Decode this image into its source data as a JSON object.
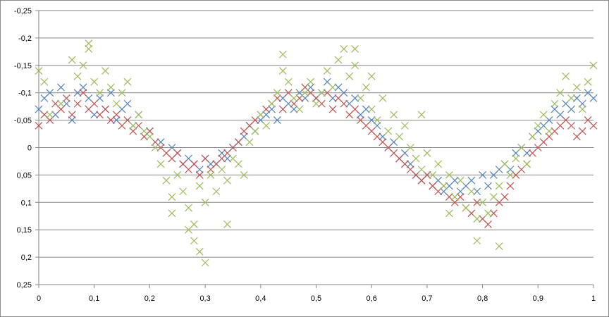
{
  "chart_data": {
    "type": "scatter",
    "title": "",
    "xlabel": "",
    "ylabel": "",
    "xlim": [
      0,
      1
    ],
    "ylim": [
      -0.25,
      0.25
    ],
    "y_reversed": true,
    "x_ticks": [
      "0",
      "0,1",
      "0,2",
      "0,3",
      "0,4",
      "0,5",
      "0,6",
      "0,7",
      "0,8",
      "0,9",
      "1"
    ],
    "y_ticks": [
      "-0,25",
      "-0,2",
      "-0,15",
      "-0,1",
      "-0,05",
      "0",
      "0,05",
      "0,1",
      "0,15",
      "0,2",
      "0,25"
    ],
    "grid": "horizontal",
    "legend": "none",
    "marker": "x",
    "series": [
      {
        "color": "#4f81bd",
        "points": [
          [
            0.0,
            -0.07
          ],
          [
            0.01,
            -0.09
          ],
          [
            0.02,
            -0.1
          ],
          [
            0.03,
            -0.06
          ],
          [
            0.04,
            -0.11
          ],
          [
            0.05,
            -0.08
          ],
          [
            0.06,
            -0.05
          ],
          [
            0.07,
            -0.1
          ],
          [
            0.08,
            -0.11
          ],
          [
            0.09,
            -0.09
          ],
          [
            0.1,
            -0.06
          ],
          [
            0.11,
            -0.09
          ],
          [
            0.12,
            -0.07
          ],
          [
            0.13,
            -0.1
          ],
          [
            0.14,
            -0.05
          ],
          [
            0.15,
            -0.07
          ],
          [
            0.16,
            -0.08
          ],
          [
            0.17,
            -0.04
          ],
          [
            0.18,
            -0.06
          ],
          [
            0.2,
            -0.03
          ],
          [
            0.22,
            -0.01
          ],
          [
            0.24,
            0.0
          ],
          [
            0.25,
            0.01
          ],
          [
            0.26,
            0.03
          ],
          [
            0.27,
            0.02
          ],
          [
            0.28,
            0.03
          ],
          [
            0.29,
            0.04
          ],
          [
            0.3,
            0.02
          ],
          [
            0.31,
            0.03
          ],
          [
            0.32,
            0.03
          ],
          [
            0.33,
            0.01
          ],
          [
            0.34,
            0.02
          ],
          [
            0.35,
            0.0
          ],
          [
            0.36,
            -0.01
          ],
          [
            0.37,
            -0.02
          ],
          [
            0.38,
            -0.04
          ],
          [
            0.39,
            -0.03
          ],
          [
            0.4,
            -0.05
          ],
          [
            0.41,
            -0.06
          ],
          [
            0.42,
            -0.07
          ],
          [
            0.43,
            -0.05
          ],
          [
            0.44,
            -0.09
          ],
          [
            0.45,
            -0.08
          ],
          [
            0.46,
            -0.07
          ],
          [
            0.47,
            -0.1
          ],
          [
            0.48,
            -0.09
          ],
          [
            0.49,
            -0.11
          ],
          [
            0.5,
            -0.09
          ],
          [
            0.51,
            -0.1
          ],
          [
            0.52,
            -0.12
          ],
          [
            0.53,
            -0.09
          ],
          [
            0.54,
            -0.11
          ],
          [
            0.55,
            -0.1
          ],
          [
            0.56,
            -0.08
          ],
          [
            0.57,
            -0.09
          ],
          [
            0.58,
            -0.06
          ],
          [
            0.59,
            -0.07
          ],
          [
            0.6,
            -0.05
          ],
          [
            0.61,
            -0.04
          ],
          [
            0.62,
            -0.02
          ],
          [
            0.63,
            0.0
          ],
          [
            0.64,
            -0.01
          ],
          [
            0.65,
            0.02
          ],
          [
            0.66,
            0.01
          ],
          [
            0.67,
            0.03
          ],
          [
            0.68,
            0.05
          ],
          [
            0.69,
            0.06
          ],
          [
            0.7,
            0.05
          ],
          [
            0.71,
            0.07
          ],
          [
            0.72,
            0.06
          ],
          [
            0.73,
            0.08
          ],
          [
            0.74,
            0.07
          ],
          [
            0.75,
            0.06
          ],
          [
            0.76,
            0.08
          ],
          [
            0.77,
            0.07
          ],
          [
            0.78,
            0.06
          ],
          [
            0.79,
            0.08
          ],
          [
            0.8,
            0.05
          ],
          [
            0.81,
            0.07
          ],
          [
            0.82,
            0.05
          ],
          [
            0.83,
            0.04
          ],
          [
            0.84,
            0.03
          ],
          [
            0.85,
            0.04
          ],
          [
            0.86,
            0.01
          ],
          [
            0.87,
            0.0
          ],
          [
            0.88,
            0.01
          ],
          [
            0.89,
            -0.02
          ],
          [
            0.9,
            -0.03
          ],
          [
            0.91,
            -0.04
          ],
          [
            0.92,
            -0.05
          ],
          [
            0.93,
            -0.07
          ],
          [
            0.94,
            -0.06
          ],
          [
            0.95,
            -0.08
          ],
          [
            0.96,
            -0.07
          ],
          [
            0.97,
            -0.09
          ],
          [
            0.98,
            -0.08
          ],
          [
            0.99,
            -0.1
          ],
          [
            1.0,
            -0.09
          ]
        ]
      },
      {
        "color": "#c0504d",
        "points": [
          [
            0.0,
            -0.04
          ],
          [
            0.01,
            -0.06
          ],
          [
            0.02,
            -0.05
          ],
          [
            0.03,
            -0.08
          ],
          [
            0.04,
            -0.07
          ],
          [
            0.05,
            -0.09
          ],
          [
            0.06,
            -0.06
          ],
          [
            0.07,
            -0.08
          ],
          [
            0.08,
            -0.1
          ],
          [
            0.09,
            -0.07
          ],
          [
            0.1,
            -0.08
          ],
          [
            0.11,
            -0.06
          ],
          [
            0.12,
            -0.07
          ],
          [
            0.13,
            -0.05
          ],
          [
            0.14,
            -0.06
          ],
          [
            0.15,
            -0.04
          ],
          [
            0.16,
            -0.05
          ],
          [
            0.17,
            -0.03
          ],
          [
            0.18,
            -0.04
          ],
          [
            0.19,
            -0.02
          ],
          [
            0.2,
            -0.03
          ],
          [
            0.21,
            -0.01
          ],
          [
            0.22,
            0.0
          ],
          [
            0.23,
            0.01
          ],
          [
            0.24,
            0.02
          ],
          [
            0.25,
            0.01
          ],
          [
            0.26,
            0.03
          ],
          [
            0.27,
            0.04
          ],
          [
            0.28,
            0.03
          ],
          [
            0.29,
            0.05
          ],
          [
            0.3,
            0.02
          ],
          [
            0.31,
            0.04
          ],
          [
            0.32,
            0.03
          ],
          [
            0.33,
            0.02
          ],
          [
            0.34,
            0.01
          ],
          [
            0.35,
            0.0
          ],
          [
            0.36,
            -0.01
          ],
          [
            0.37,
            -0.03
          ],
          [
            0.38,
            -0.04
          ],
          [
            0.39,
            -0.05
          ],
          [
            0.4,
            -0.06
          ],
          [
            0.41,
            -0.07
          ],
          [
            0.42,
            -0.08
          ],
          [
            0.43,
            -0.09
          ],
          [
            0.44,
            -0.07
          ],
          [
            0.45,
            -0.1
          ],
          [
            0.46,
            -0.08
          ],
          [
            0.47,
            -0.09
          ],
          [
            0.48,
            -0.11
          ],
          [
            0.49,
            -0.1
          ],
          [
            0.5,
            -0.09
          ],
          [
            0.51,
            -0.08
          ],
          [
            0.52,
            -0.1
          ],
          [
            0.53,
            -0.07
          ],
          [
            0.54,
            -0.09
          ],
          [
            0.55,
            -0.08
          ],
          [
            0.56,
            -0.06
          ],
          [
            0.57,
            -0.07
          ],
          [
            0.58,
            -0.05
          ],
          [
            0.59,
            -0.04
          ],
          [
            0.6,
            -0.03
          ],
          [
            0.61,
            -0.02
          ],
          [
            0.62,
            -0.01
          ],
          [
            0.63,
            0.0
          ],
          [
            0.64,
            0.01
          ],
          [
            0.65,
            0.02
          ],
          [
            0.66,
            0.03
          ],
          [
            0.67,
            0.04
          ],
          [
            0.68,
            0.05
          ],
          [
            0.69,
            0.06
          ],
          [
            0.7,
            0.05
          ],
          [
            0.71,
            0.07
          ],
          [
            0.72,
            0.08
          ],
          [
            0.73,
            0.07
          ],
          [
            0.74,
            0.09
          ],
          [
            0.75,
            0.1
          ],
          [
            0.76,
            0.09
          ],
          [
            0.77,
            0.11
          ],
          [
            0.78,
            0.12
          ],
          [
            0.79,
            0.1
          ],
          [
            0.8,
            0.13
          ],
          [
            0.81,
            0.14
          ],
          [
            0.82,
            0.12
          ],
          [
            0.83,
            0.1
          ],
          [
            0.84,
            0.09
          ],
          [
            0.85,
            0.07
          ],
          [
            0.86,
            0.05
          ],
          [
            0.87,
            0.04
          ],
          [
            0.88,
            0.03
          ],
          [
            0.89,
            0.01
          ],
          [
            0.9,
            0.0
          ],
          [
            0.91,
            -0.01
          ],
          [
            0.92,
            -0.02
          ],
          [
            0.93,
            -0.03
          ],
          [
            0.94,
            -0.04
          ],
          [
            0.95,
            -0.05
          ],
          [
            0.96,
            -0.04
          ],
          [
            0.97,
            -0.02
          ],
          [
            0.98,
            -0.03
          ],
          [
            0.99,
            -0.05
          ],
          [
            1.0,
            -0.04
          ]
        ]
      },
      {
        "color": "#9bbb59",
        "points": [
          [
            0.0,
            -0.14
          ],
          [
            0.01,
            -0.12
          ],
          [
            0.02,
            -0.06
          ],
          [
            0.04,
            -0.08
          ],
          [
            0.06,
            -0.16
          ],
          [
            0.07,
            -0.13
          ],
          [
            0.08,
            -0.15
          ],
          [
            0.09,
            -0.18
          ],
          [
            0.1,
            -0.12
          ],
          [
            0.11,
            -0.1
          ],
          [
            0.12,
            -0.14
          ],
          [
            0.13,
            -0.11
          ],
          [
            0.14,
            -0.08
          ],
          [
            0.15,
            -0.1
          ],
          [
            0.16,
            -0.12
          ],
          [
            0.17,
            -0.04
          ],
          [
            0.18,
            -0.06
          ],
          [
            0.19,
            -0.03
          ],
          [
            0.2,
            -0.02
          ],
          [
            0.21,
            0.0
          ],
          [
            0.22,
            0.03
          ],
          [
            0.23,
            0.06
          ],
          [
            0.24,
            0.09
          ],
          [
            0.25,
            0.05
          ],
          [
            0.26,
            0.08
          ],
          [
            0.27,
            0.11
          ],
          [
            0.28,
            0.14
          ],
          [
            0.29,
            0.07
          ],
          [
            0.3,
            0.1
          ],
          [
            0.31,
            0.05
          ],
          [
            0.32,
            0.08
          ],
          [
            0.33,
            0.04
          ],
          [
            0.34,
            0.06
          ],
          [
            0.35,
            0.02
          ],
          [
            0.36,
            0.03
          ],
          [
            0.37,
            0.05
          ],
          [
            0.38,
            -0.01
          ],
          [
            0.39,
            -0.03
          ],
          [
            0.4,
            -0.06
          ],
          [
            0.41,
            -0.04
          ],
          [
            0.42,
            -0.08
          ],
          [
            0.43,
            -0.1
          ],
          [
            0.44,
            -0.14
          ],
          [
            0.45,
            -0.12
          ],
          [
            0.46,
            -0.09
          ],
          [
            0.47,
            -0.07
          ],
          [
            0.48,
            -0.1
          ],
          [
            0.49,
            -0.12
          ],
          [
            0.5,
            -0.08
          ],
          [
            0.51,
            -0.1
          ],
          [
            0.52,
            -0.14
          ],
          [
            0.53,
            -0.11
          ],
          [
            0.54,
            -0.16
          ],
          [
            0.55,
            -0.18
          ],
          [
            0.56,
            -0.13
          ],
          [
            0.57,
            -0.15
          ],
          [
            0.58,
            -0.09
          ],
          [
            0.59,
            -0.11
          ],
          [
            0.6,
            -0.07
          ],
          [
            0.61,
            -0.05
          ],
          [
            0.62,
            -0.09
          ],
          [
            0.63,
            -0.03
          ],
          [
            0.64,
            -0.06
          ],
          [
            0.65,
            -0.02
          ],
          [
            0.66,
            -0.04
          ],
          [
            0.67,
            0.0
          ],
          [
            0.68,
            0.02
          ],
          [
            0.69,
            0.04
          ],
          [
            0.7,
            0.01
          ],
          [
            0.71,
            0.05
          ],
          [
            0.72,
            0.03
          ],
          [
            0.73,
            0.07
          ],
          [
            0.74,
            0.05
          ],
          [
            0.75,
            0.09
          ],
          [
            0.76,
            0.06
          ],
          [
            0.77,
            0.11
          ],
          [
            0.78,
            0.08
          ],
          [
            0.79,
            0.13
          ],
          [
            0.8,
            0.1
          ],
          [
            0.81,
            0.12
          ],
          [
            0.82,
            0.09
          ],
          [
            0.83,
            0.07
          ],
          [
            0.84,
            0.03
          ],
          [
            0.85,
            0.05
          ],
          [
            0.86,
            0.02
          ],
          [
            0.87,
            0.0
          ],
          [
            0.88,
            0.03
          ],
          [
            0.89,
            -0.02
          ],
          [
            0.9,
            -0.04
          ],
          [
            0.91,
            -0.06
          ],
          [
            0.92,
            -0.03
          ],
          [
            0.93,
            -0.08
          ],
          [
            0.94,
            -0.1
          ],
          [
            0.95,
            -0.13
          ],
          [
            0.96,
            -0.09
          ],
          [
            0.97,
            -0.11
          ],
          [
            0.98,
            -0.07
          ],
          [
            0.99,
            -0.12
          ],
          [
            1.0,
            -0.15
          ],
          [
            0.29,
            0.19
          ],
          [
            0.3,
            0.21
          ],
          [
            0.28,
            0.17
          ],
          [
            0.27,
            0.15
          ],
          [
            0.79,
            0.17
          ],
          [
            0.83,
            0.18
          ],
          [
            0.24,
            0.12
          ],
          [
            0.34,
            0.14
          ],
          [
            0.44,
            -0.17
          ],
          [
            0.57,
            -0.18
          ],
          [
            0.09,
            -0.19
          ],
          [
            0.6,
            -0.13
          ],
          [
            0.69,
            -0.06
          ],
          [
            0.74,
            0.12
          ]
        ]
      }
    ]
  }
}
